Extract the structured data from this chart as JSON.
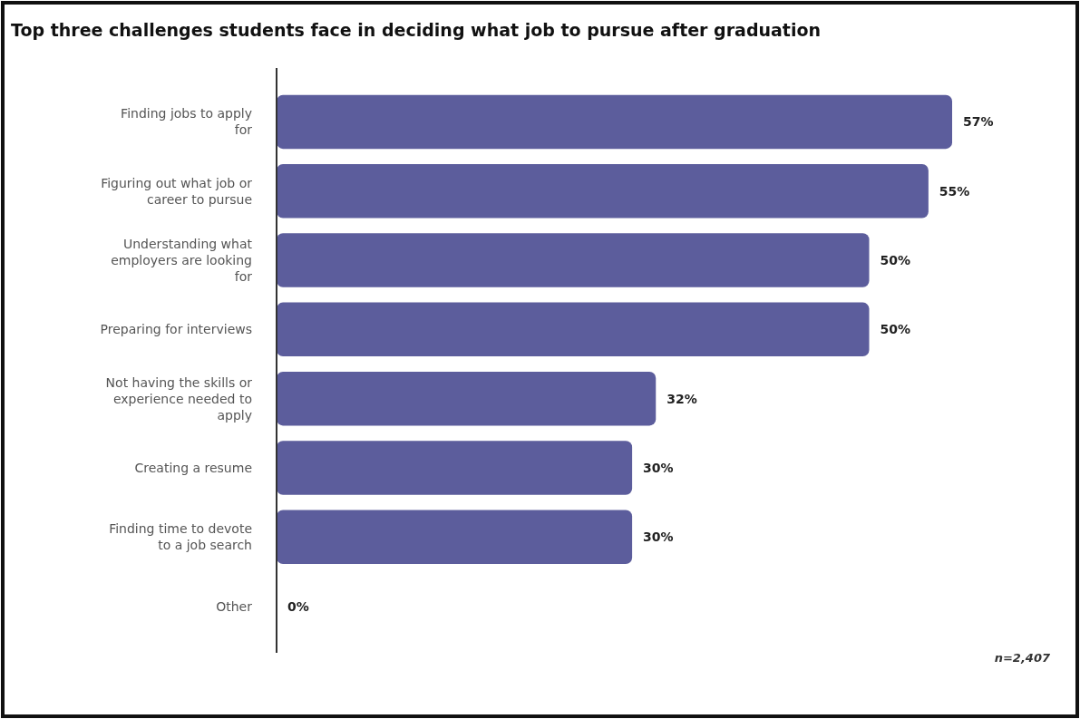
{
  "chart_data": {
    "type": "bar",
    "orientation": "horizontal",
    "title": "Top three challenges students face in deciding what job to pursue after graduation",
    "categories": [
      "Finding jobs to apply for",
      "Figuring out what job or career to pursue",
      "Understanding what employers are looking for",
      "Preparing for interviews",
      "Not having the skills or experience needed to apply",
      "Creating a resume",
      "Finding time to devote to a job search",
      "Other"
    ],
    "values": [
      57,
      55,
      50,
      50,
      32,
      30,
      30,
      0
    ],
    "value_labels": [
      "57%",
      "55%",
      "50%",
      "50%",
      "32%",
      "30%",
      "30%",
      "0%"
    ],
    "color": "#5c5d9c",
    "annotations": [
      "n=2,407"
    ]
  }
}
